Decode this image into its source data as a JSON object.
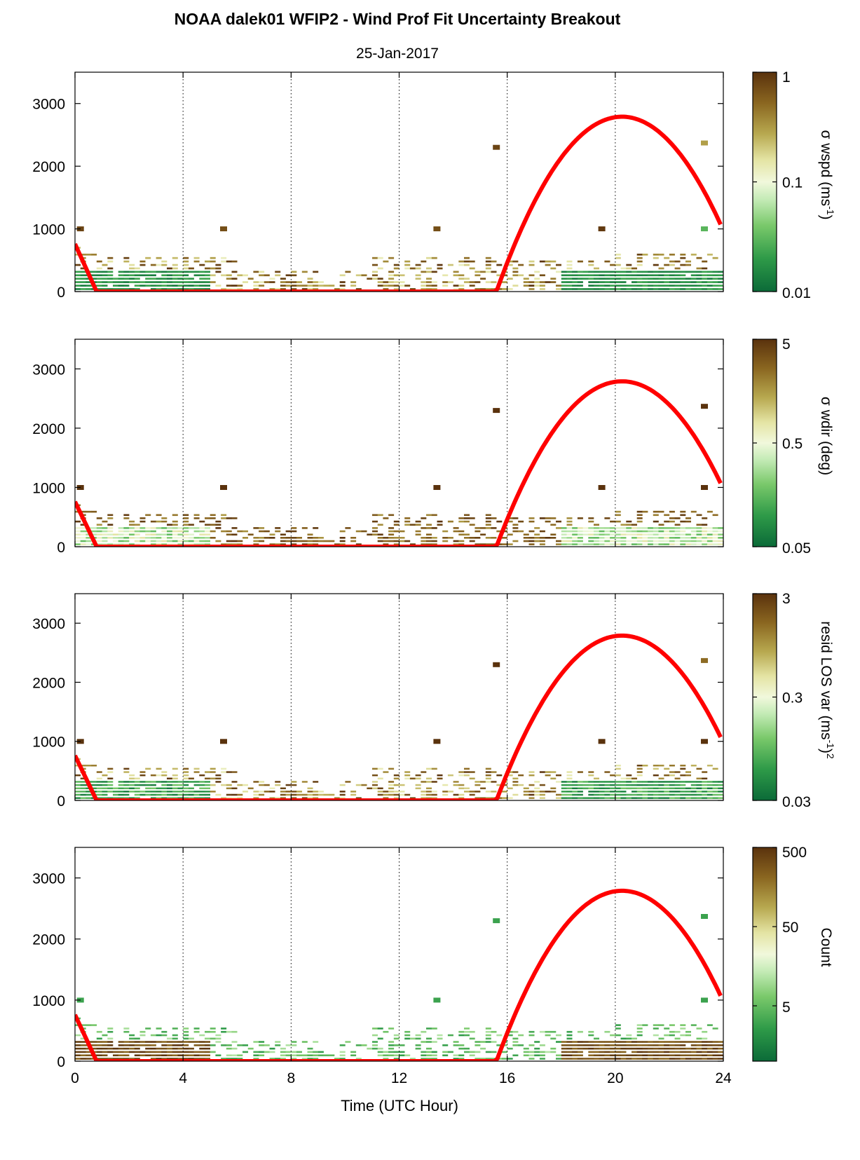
{
  "figure": {
    "title": "NOAA dalek01 WFIP2 - Wind Prof Fit Uncertainty Breakout",
    "subtitle": "25-Jan-2017",
    "xlabel": "Time (UTC Hour)"
  },
  "chart_data": [
    {
      "type": "heatmap",
      "panel": "sigma-wspd",
      "colorbar_label": "σ wspd (ms",
      "colorbar_label_sup": "-1",
      "colorbar_label_tail": ")",
      "colorbar_scale": "log",
      "colorbar_range": [
        0.01,
        1
      ],
      "colorbar_ticks": [
        "1",
        "0.1",
        "0.01"
      ],
      "colorbar_tick_values": [
        1,
        0.1,
        0.01
      ],
      "xlim": [
        0,
        24
      ],
      "ylim": [
        0,
        3500
      ],
      "x_ticks": [
        0,
        4,
        8,
        12,
        16,
        20,
        24
      ],
      "y_ticks": [
        "0",
        "1000",
        "2000",
        "3000"
      ],
      "y_tick_values": [
        0,
        1000,
        2000,
        3000
      ],
      "vertical_gridlines": [
        4,
        8,
        12,
        16,
        20
      ],
      "series": [
        {
          "name": "",
          "type": "line",
          "color": "#ff0000",
          "x": [
            0,
            0.8,
            15.6,
            16,
            17,
            18,
            19,
            20,
            20.3,
            21,
            22,
            23,
            23.9
          ],
          "y": [
            760,
            0,
            0,
            330,
            1050,
            1720,
            2350,
            2750,
            2790,
            2700,
            2250,
            1650,
            1040
          ]
        }
      ],
      "stray_points": [
        {
          "x": 15.6,
          "y": 2300,
          "v": 0.8
        },
        {
          "x": 23.3,
          "y": 2370,
          "v": 0.3
        },
        {
          "x": 5.5,
          "y": 1000,
          "v": 0.7
        },
        {
          "x": 13.4,
          "y": 1000,
          "v": 0.7
        },
        {
          "x": 19.5,
          "y": 1000,
          "v": 0.9
        },
        {
          "x": 0.2,
          "y": 1000,
          "v": 0.8
        },
        {
          "x": 23.3,
          "y": 1000,
          "v": 0.03
        }
      ]
    },
    {
      "type": "heatmap",
      "panel": "sigma-wdir",
      "colorbar_label": "σ wdir (deg)",
      "colorbar_label_sup": "",
      "colorbar_label_tail": "",
      "colorbar_scale": "log",
      "colorbar_range": [
        0.05,
        5
      ],
      "colorbar_ticks": [
        "5",
        "0.5",
        "0.05"
      ],
      "colorbar_tick_values": [
        5,
        0.5,
        0.05
      ],
      "xlim": [
        0,
        24
      ],
      "ylim": [
        0,
        3500
      ],
      "x_ticks": [
        0,
        4,
        8,
        12,
        16,
        20,
        24
      ],
      "y_ticks": [
        "0",
        "1000",
        "2000",
        "3000"
      ],
      "y_tick_values": [
        0,
        1000,
        2000,
        3000
      ],
      "vertical_gridlines": [
        4,
        8,
        12,
        16,
        20
      ],
      "series": [
        {
          "name": "",
          "type": "line",
          "color": "#ff0000",
          "x": [
            0,
            0.8,
            15.6,
            16,
            17,
            18,
            19,
            20,
            20.3,
            21,
            22,
            23,
            23.9
          ],
          "y": [
            760,
            0,
            0,
            330,
            1050,
            1720,
            2350,
            2750,
            2790,
            2700,
            2250,
            1650,
            1040
          ]
        }
      ],
      "stray_points": [
        {
          "x": 15.6,
          "y": 2300,
          "v": 5
        },
        {
          "x": 23.3,
          "y": 2370,
          "v": 5
        },
        {
          "x": 5.5,
          "y": 1000,
          "v": 5
        },
        {
          "x": 13.4,
          "y": 1000,
          "v": 5
        },
        {
          "x": 19.5,
          "y": 1000,
          "v": 5
        },
        {
          "x": 0.2,
          "y": 1000,
          "v": 5
        },
        {
          "x": 23.3,
          "y": 1000,
          "v": 5
        }
      ]
    },
    {
      "type": "heatmap",
      "panel": "resid-los-var",
      "colorbar_label": "resid LOS var (ms",
      "colorbar_label_sup": "-1",
      "colorbar_label_tail": ")",
      "colorbar_label_sup2": "2",
      "colorbar_scale": "log",
      "colorbar_range": [
        0.03,
        3
      ],
      "colorbar_ticks": [
        "3",
        "0.3",
        "0.03"
      ],
      "colorbar_tick_values": [
        3,
        0.3,
        0.03
      ],
      "xlim": [
        0,
        24
      ],
      "ylim": [
        0,
        3500
      ],
      "x_ticks": [
        0,
        4,
        8,
        12,
        16,
        20,
        24
      ],
      "y_ticks": [
        "0",
        "1000",
        "2000",
        "3000"
      ],
      "y_tick_values": [
        0,
        1000,
        2000,
        3000
      ],
      "vertical_gridlines": [
        4,
        8,
        12,
        16,
        20
      ],
      "series": [
        {
          "name": "",
          "type": "line",
          "color": "#ff0000",
          "x": [
            0,
            0.8,
            15.6,
            16,
            17,
            18,
            19,
            20,
            20.3,
            21,
            22,
            23,
            23.9
          ],
          "y": [
            760,
            0,
            0,
            330,
            1050,
            1720,
            2350,
            2750,
            2790,
            2700,
            2250,
            1650,
            1040
          ]
        }
      ],
      "stray_points": [
        {
          "x": 15.6,
          "y": 2300,
          "v": 3
        },
        {
          "x": 23.3,
          "y": 2370,
          "v": 1.5
        },
        {
          "x": 5.5,
          "y": 1000,
          "v": 3
        },
        {
          "x": 13.4,
          "y": 1000,
          "v": 3
        },
        {
          "x": 19.5,
          "y": 1000,
          "v": 3
        },
        {
          "x": 0.2,
          "y": 1000,
          "v": 3
        },
        {
          "x": 23.3,
          "y": 1000,
          "v": 3
        }
      ]
    },
    {
      "type": "heatmap",
      "panel": "count",
      "colorbar_label": "Count",
      "colorbar_label_sup": "",
      "colorbar_label_tail": "",
      "colorbar_scale": "log",
      "colorbar_range": [
        1,
        500
      ],
      "colorbar_ticks": [
        "500",
        "50",
        "5"
      ],
      "colorbar_tick_values": [
        500,
        50,
        5
      ],
      "xlim": [
        0,
        24
      ],
      "ylim": [
        0,
        3500
      ],
      "x_ticks": [
        0,
        4,
        8,
        12,
        16,
        20,
        24
      ],
      "x_tick_labels": [
        "0",
        "4",
        "8",
        "12",
        "16",
        "20",
        "24"
      ],
      "y_ticks": [
        "0",
        "1000",
        "2000",
        "3000"
      ],
      "y_tick_values": [
        0,
        1000,
        2000,
        3000
      ],
      "vertical_gridlines": [
        4,
        8,
        12,
        16,
        20
      ],
      "series": [
        {
          "name": "",
          "type": "line",
          "color": "#ff0000",
          "x": [
            0,
            0.8,
            15.6,
            16,
            17,
            18,
            19,
            20,
            20.3,
            21,
            22,
            23,
            23.9
          ],
          "y": [
            760,
            0,
            0,
            330,
            1050,
            1720,
            2350,
            2750,
            2790,
            2700,
            2250,
            1650,
            1040
          ]
        }
      ],
      "stray_points": [
        {
          "x": 15.6,
          "y": 2300,
          "v": 3
        },
        {
          "x": 23.3,
          "y": 2370,
          "v": 3
        },
        {
          "x": 13.4,
          "y": 1000,
          "v": 3
        },
        {
          "x": 0.2,
          "y": 1000,
          "v": 3
        },
        {
          "x": 23.3,
          "y": 1000,
          "v": 3
        }
      ]
    }
  ]
}
